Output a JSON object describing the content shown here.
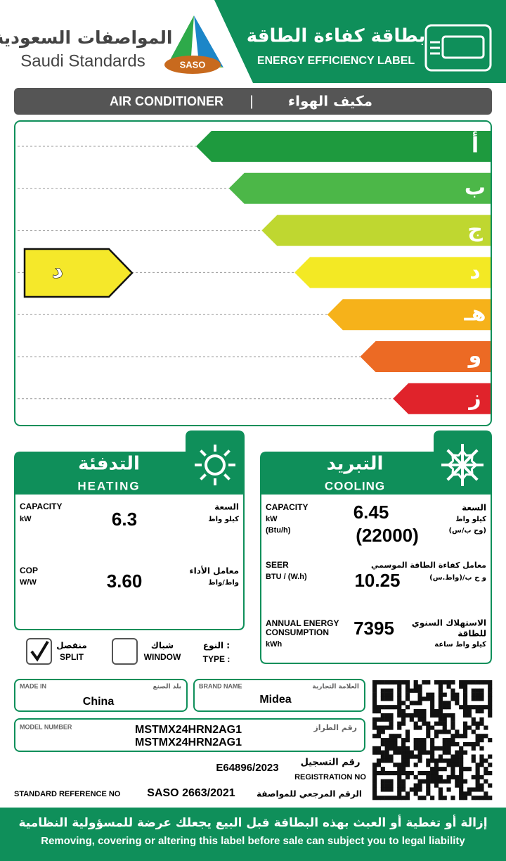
{
  "header": {
    "org_ar": "المواصفات السعودية",
    "org_en": "Saudi Standards",
    "logo": "SASO",
    "title_ar": "بطاقة كفاءة الطاقة",
    "title_en": "ENERGY EFFICIENCY LABEL"
  },
  "product": {
    "en": "AIR CONDITIONER",
    "separator": "|",
    "ar": "مكيف الهواء"
  },
  "scale": {
    "grades": [
      "أ",
      "ب",
      "ج",
      "د",
      "هـ",
      "و",
      "ز"
    ],
    "rating": "د",
    "rating_index": 3
  },
  "heating": {
    "title_ar": "التدفئة",
    "title_en": "HEATING",
    "capacity": {
      "label_en": "CAPACITY",
      "unit_en": "kW",
      "value": "6.3",
      "label_ar": "السعة",
      "unit_ar": "كيلو واط"
    },
    "cop": {
      "label_en": "COP",
      "unit_en": "W/W",
      "value": "3.60",
      "label_ar": "معامل الأداء",
      "unit_ar": "واط/واط"
    }
  },
  "cooling": {
    "title_ar": "التبريد",
    "title_en": "COOLING",
    "capacity": {
      "label_en": "CAPACITY",
      "unit_en": "kW",
      "unit2_en": "(Btu/h)",
      "value": "6.45",
      "value2": "(22000)",
      "label_ar": "السعة",
      "unit_ar": "كيلو واط",
      "unit2_ar": "(وح ب/س)"
    },
    "seer": {
      "label_en": "SEER",
      "unit_en": "BTU / (W.h)",
      "value": "10.25",
      "label_ar": "معامل كفاءة الطاقة الموسمي",
      "unit_ar": "و ح ب/(واط.س)"
    },
    "annual": {
      "label_en": [
        "ANNUAL ENERGY",
        "CONSUMPTION"
      ],
      "unit_en": "kWh",
      "value": "7395",
      "label_ar": [
        "الاستهلاك السنوي",
        "للطاقة"
      ],
      "unit_ar": "كيلو واط ساعة"
    }
  },
  "type": {
    "split_ar": "منفصل",
    "split_en": "SPLIT",
    "window_ar": "شباك",
    "window_en": "WINDOW",
    "label_ar": "النوع :",
    "label_en": "TYPE :",
    "selected": "split"
  },
  "info": {
    "made_in_label_en": "MADE IN",
    "made_in_label_ar": "بلد الصنع",
    "made_in": "China",
    "brand_label_en": "BRAND NAME",
    "brand_label_ar": "العلامة التجارية",
    "brand": "Midea",
    "model_label_en": "MODEL NUMBER",
    "model_label_ar": "رقم الطراز",
    "models": [
      "MSTMX24HRN2AG1",
      "MSTMX24HRN2AG1"
    ],
    "registration": "E64896/2023",
    "registration_label_ar": "رقم التسجيل",
    "registration_label_en": "REGISTRATION NO",
    "standard_label_en": "STANDARD REFERENCE NO",
    "standard": "SASO 2663/2021",
    "standard_label_ar": "الرقم المرجعي للمواصفة"
  },
  "footer": {
    "ar": "إزالة أو تغطية أو العبث بهذه البطاقة قبل البيع يجعلك عرضة للمسؤولية النظامية",
    "en": "Removing, covering or altering this label before sale can subject you to legal liability"
  }
}
